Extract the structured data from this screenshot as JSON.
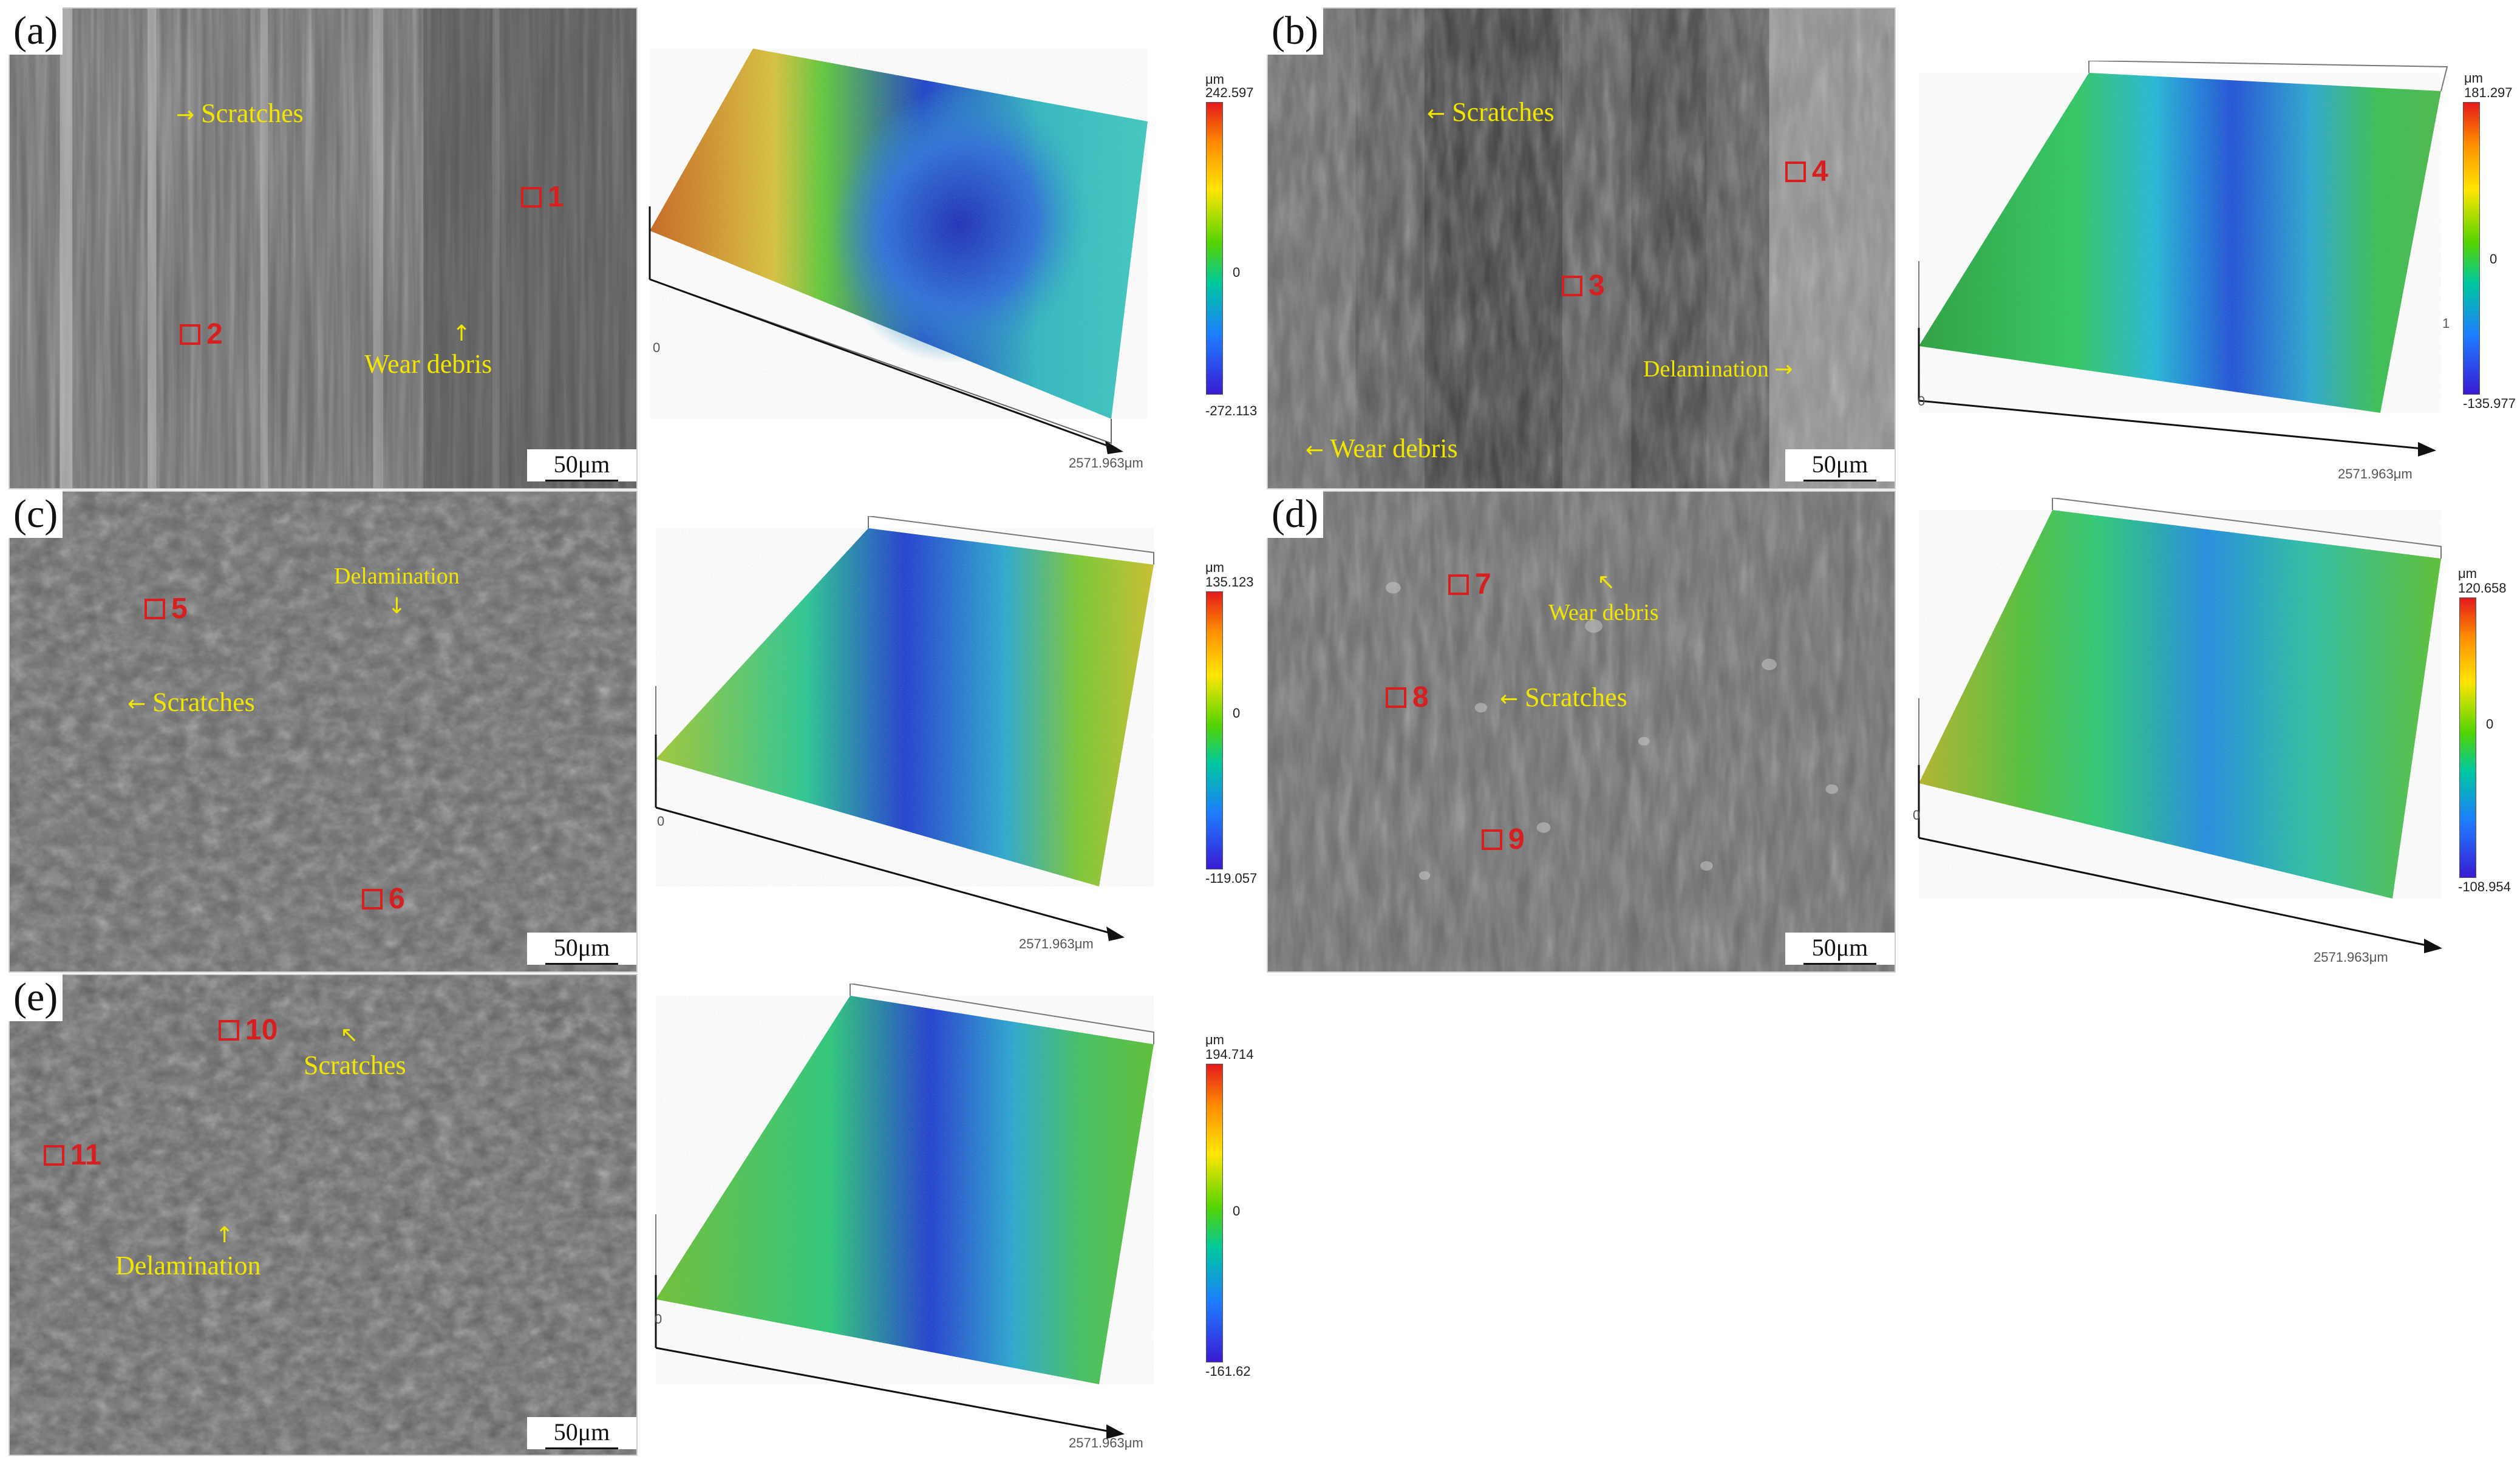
{
  "panels": [
    {
      "label": "(a)",
      "scale_bar": "50μm",
      "annotations": [
        "Scratches",
        "Wear debris"
      ],
      "sites": [
        "1",
        "2"
      ],
      "colorbar": {
        "unit": "μm",
        "max": "242.597",
        "zero": "0",
        "min": "-272.113"
      },
      "axis": {
        "origin": "0",
        "length": "2571.963μm"
      },
      "colors": {
        "left_edge": "#c8651c",
        "rim": "#2fb84a",
        "pit": "#1a40c8",
        "right": "#3cc8c0"
      }
    },
    {
      "label": "(b)",
      "scale_bar": "50μm",
      "annotations": [
        "Scratches",
        "Delamination",
        "Wear debris"
      ],
      "sites": [
        "3",
        "4"
      ],
      "colorbar": {
        "unit": "μm",
        "max": "181.297",
        "zero": "0",
        "min": "-135.977",
        "extra_tick": "1"
      },
      "axis": {
        "origin": "0",
        "length": "2571.963μm"
      },
      "colors": {
        "left_edge": "#28a03c",
        "rim": "#2fc860",
        "pit": "#1e50d8",
        "right": "#4ab84a"
      }
    },
    {
      "label": "(c)",
      "scale_bar": "50μm",
      "annotations": [
        "Delamination",
        "Scratches"
      ],
      "sites": [
        "5",
        "6"
      ],
      "colorbar": {
        "unit": "μm",
        "max": "135.123",
        "zero": "0",
        "min": "-119.057"
      },
      "axis": {
        "origin": "0",
        "length": "2571.963μm"
      },
      "colors": {
        "left_edge": "#a0c832",
        "rim": "#28c890",
        "pit": "#1e3cd0",
        "right": "#c8c028"
      }
    },
    {
      "label": "(d)",
      "scale_bar": "50μm",
      "annotations": [
        "Wear debris",
        "Scratches"
      ],
      "sites": [
        "7",
        "8",
        "9"
      ],
      "colorbar": {
        "unit": "μm",
        "max": "120.658",
        "zero": "0",
        "min": "-108.954"
      },
      "axis": {
        "origin": "0",
        "length": "2571.963μm"
      },
      "colors": {
        "left_edge": "#b4b428",
        "rim": "#28c878",
        "pit": "#1e8ce0",
        "right": "#58c030"
      }
    },
    {
      "label": "(e)",
      "scale_bar": "50μm",
      "annotations": [
        "Scratches",
        "Delamination"
      ],
      "sites": [
        "10",
        "11"
      ],
      "colorbar": {
        "unit": "μm",
        "max": "194.714",
        "zero": "0",
        "min": "-161.62"
      },
      "axis": {
        "origin": "0",
        "length": "2571.963μm"
      },
      "colors": {
        "left_edge": "#6cc030",
        "rim": "#28c878",
        "pit": "#1e3cd0",
        "right": "#58c030"
      }
    }
  ]
}
